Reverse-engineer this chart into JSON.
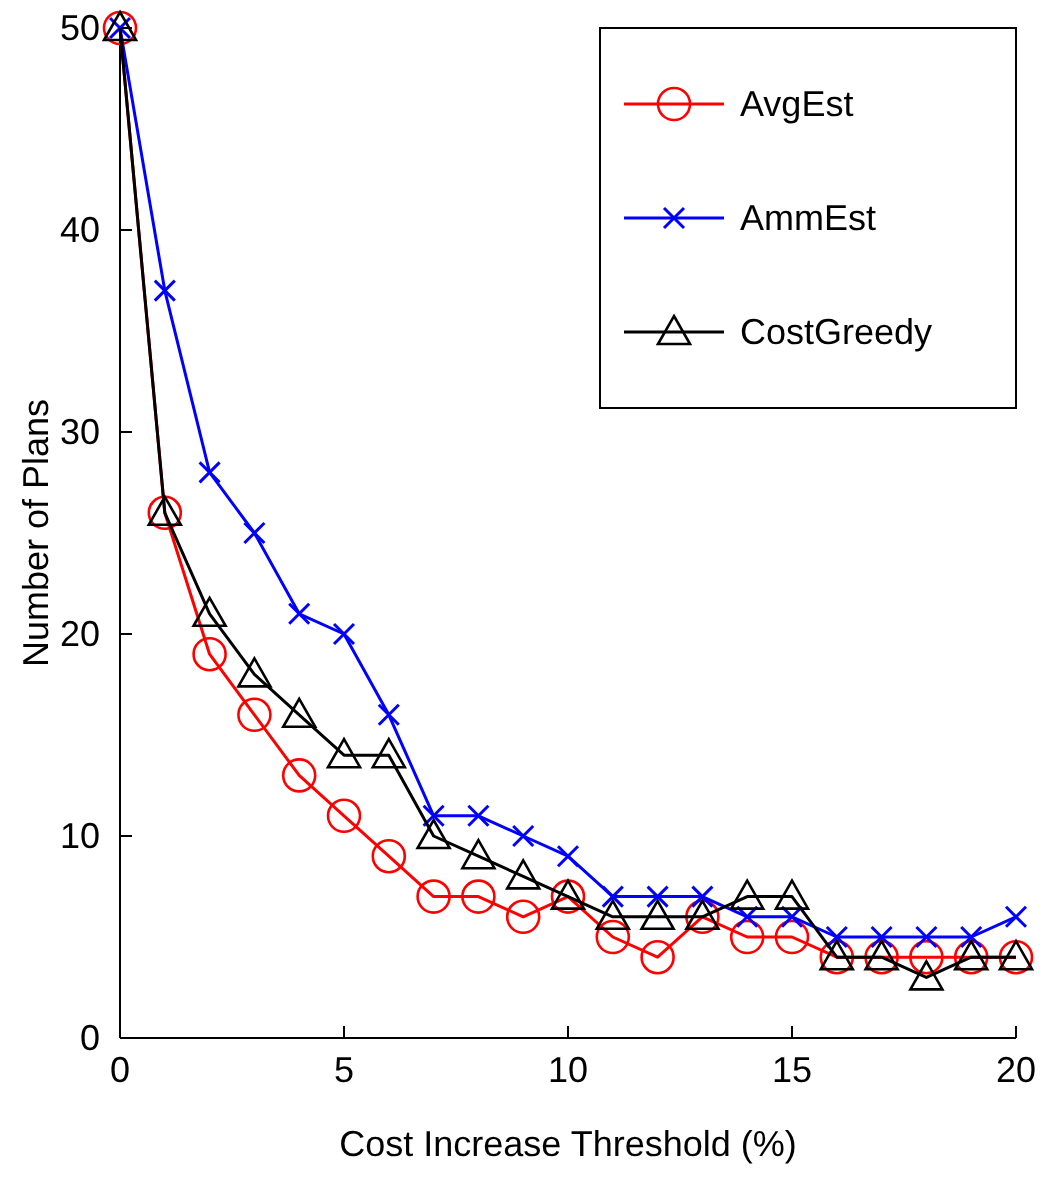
{
  "chart_data": {
    "type": "line",
    "xlabel": "Cost Increase Threshold (%)",
    "ylabel": "Number of Plans",
    "x": [
      0,
      1,
      2,
      3,
      4,
      5,
      6,
      7,
      8,
      9,
      10,
      11,
      12,
      13,
      14,
      15,
      16,
      17,
      18,
      19,
      20
    ],
    "xlim": [
      0,
      20
    ],
    "xticks": [
      0,
      5,
      10,
      15,
      20
    ],
    "ylim": [
      0,
      50
    ],
    "yticks": [
      0,
      10,
      20,
      30,
      40,
      50
    ],
    "grid": false,
    "legend": "top right",
    "line_style": "solid",
    "series": [
      {
        "name": "AvgEst",
        "color": "#ff0000",
        "marker": "circle",
        "values": [
          50,
          26,
          19,
          16,
          13,
          11,
          9,
          7,
          7,
          6,
          7,
          5,
          4,
          6,
          5,
          5,
          4,
          4,
          4,
          4,
          4
        ]
      },
      {
        "name": "AmmEst",
        "color": "#0000ff",
        "marker": "cross",
        "values": [
          50,
          37,
          28,
          25,
          21,
          20,
          16,
          11,
          11,
          10,
          9,
          7,
          7,
          7,
          6,
          6,
          5,
          5,
          5,
          5,
          6
        ]
      },
      {
        "name": "CostGreedy",
        "color": "#000000",
        "marker": "triangle",
        "values": [
          50,
          26,
          21,
          18,
          16,
          14,
          14,
          10,
          9,
          8,
          7,
          6,
          6,
          6,
          7,
          7,
          4,
          4,
          3,
          4,
          4
        ]
      }
    ]
  }
}
